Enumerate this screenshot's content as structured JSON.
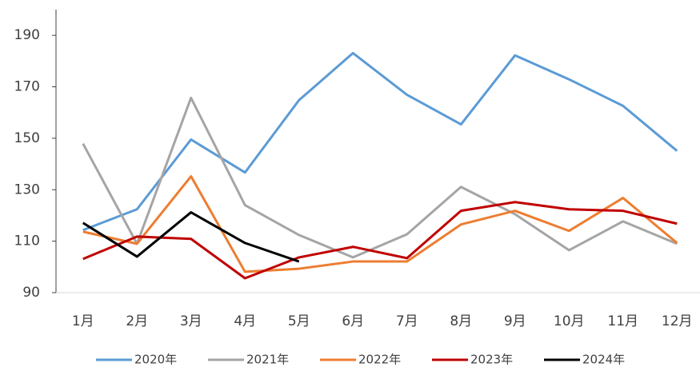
{
  "chart_data": {
    "type": "line",
    "categories": [
      "1月",
      "2月",
      "3月",
      "4月",
      "5月",
      "6月",
      "7月",
      "8月",
      "9月",
      "10月",
      "11月",
      "12月"
    ],
    "series": [
      {
        "name": "2020年",
        "color": "#5b9bd5",
        "values": [
          114.3,
          122.4,
          149.5,
          136.7,
          164.8,
          183.1,
          166.9,
          155.4,
          182.2,
          172.9,
          162.6,
          145.1
        ]
      },
      {
        "name": "2021年",
        "color": "#a5a5a5",
        "values": [
          147.9,
          109,
          165.7,
          124,
          112.4,
          103.7,
          112.7,
          131.1,
          120.5,
          106.5,
          117.7,
          109
        ]
      },
      {
        "name": "2022年",
        "color": "#ed7d31",
        "values": [
          113.7,
          109,
          135.2,
          98.1,
          99.3,
          102.1,
          102.1,
          116.5,
          121.8,
          114,
          126.8,
          109.3
        ]
      },
      {
        "name": "2023年",
        "color": "#c00000",
        "values": [
          103.1,
          111.8,
          110.9,
          95.6,
          103.7,
          107.8,
          103.4,
          121.8,
          125.2,
          122.4,
          121.8,
          116.8
        ]
      },
      {
        "name": "2024年",
        "color": "#000000",
        "values": [
          117.1,
          104,
          121.2,
          109.3,
          102.1,
          null,
          null,
          null,
          null,
          null,
          null,
          null
        ]
      }
    ],
    "ylim": [
      90,
      200
    ],
    "yticks": [
      90,
      110,
      130,
      150,
      170,
      190
    ],
    "grid": false,
    "legend": "bottom"
  }
}
